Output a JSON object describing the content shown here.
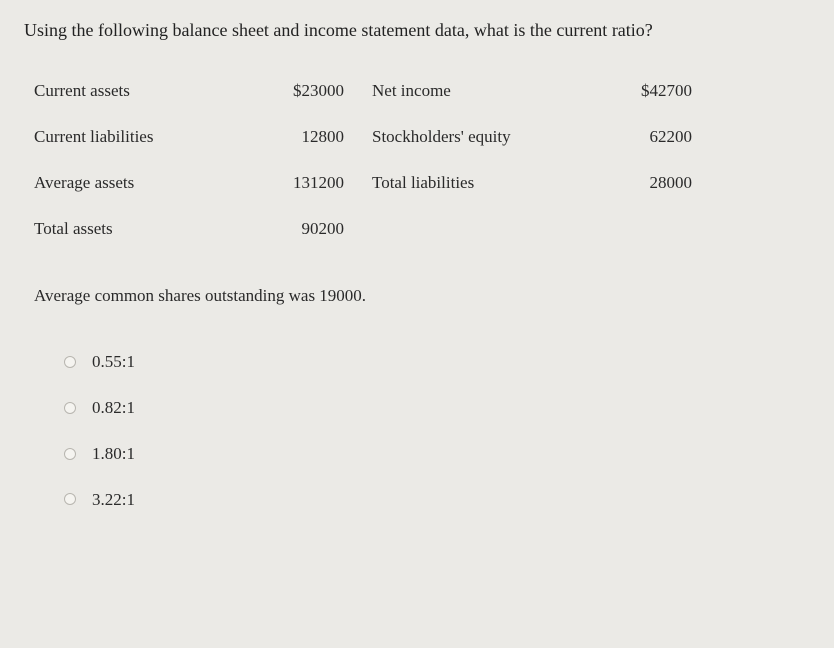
{
  "question": "Using the following balance sheet and income statement data, what is the current ratio?",
  "table": {
    "rows": [
      {
        "l1": "Current assets",
        "v1": "$23000",
        "l2": "Net income",
        "v2": "$42700"
      },
      {
        "l1": "Current liabilities",
        "v1": "12800",
        "l2": "Stockholders' equity",
        "v2": "62200"
      },
      {
        "l1": "Average assets",
        "v1": "131200",
        "l2": "Total liabilities",
        "v2": "28000"
      },
      {
        "l1": "Total assets",
        "v1": "90200",
        "l2": "",
        "v2": ""
      }
    ]
  },
  "note": "Average common shares outstanding was 19000.",
  "options": [
    {
      "label": "0.55:1"
    },
    {
      "label": "0.82:1"
    },
    {
      "label": "1.80:1"
    },
    {
      "label": "3.22:1"
    }
  ],
  "style": {
    "background_color": "#ebeae6",
    "text_color": "#2a2a2a",
    "font_family": "Georgia, serif",
    "question_fontsize": 18,
    "body_fontsize": 17,
    "radio_border_color": "#b8b6b0"
  }
}
